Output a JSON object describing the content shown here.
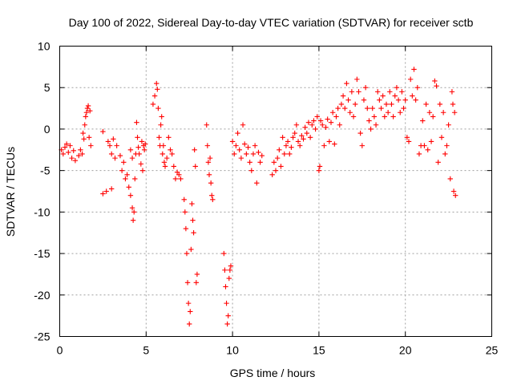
{
  "chart_data": {
    "type": "scatter",
    "title": "Day 100 of 2022, Sidereal Day-to-day VTEC variation (SDTVAR) for receiver sctb",
    "xlabel": "GPS time / hours",
    "ylabel": "SDTVAR / TECUs",
    "xlim": [
      0,
      25
    ],
    "ylim": [
      -25,
      10
    ],
    "xticks": [
      0,
      5,
      10,
      15,
      20,
      25
    ],
    "yticks": [
      -25,
      -20,
      -15,
      -10,
      -5,
      0,
      5,
      10
    ],
    "grid": true,
    "marker": "+",
    "color": "#ff0000",
    "series": [
      {
        "name": "sctb",
        "points": [
          [
            0.1,
            -2.5
          ],
          [
            0.2,
            -3.0
          ],
          [
            0.3,
            -2.2
          ],
          [
            0.4,
            -1.8
          ],
          [
            0.5,
            -2.8
          ],
          [
            0.6,
            -2.0
          ],
          [
            0.7,
            -3.5
          ],
          [
            0.8,
            -2.6
          ],
          [
            0.9,
            -3.8
          ],
          [
            1.1,
            -3.2
          ],
          [
            1.2,
            -2.5
          ],
          [
            1.3,
            -3.0
          ],
          [
            1.35,
            -0.5
          ],
          [
            1.4,
            -1.2
          ],
          [
            1.45,
            0.5
          ],
          [
            1.5,
            1.5
          ],
          [
            1.55,
            2.0
          ],
          [
            1.6,
            2.5
          ],
          [
            1.65,
            2.8
          ],
          [
            1.7,
            -1.0
          ],
          [
            1.75,
            2.2
          ],
          [
            1.8,
            -2.0
          ],
          [
            2.5,
            -0.3
          ],
          [
            2.5,
            -7.8
          ],
          [
            2.7,
            -7.5
          ],
          [
            2.8,
            -1.5
          ],
          [
            2.9,
            -2.0
          ],
          [
            3.0,
            -3.0
          ],
          [
            3.0,
            -7.2
          ],
          [
            3.1,
            -1.2
          ],
          [
            3.2,
            -3.5
          ],
          [
            3.3,
            -2.0
          ],
          [
            3.5,
            -3.2
          ],
          [
            3.6,
            -5.0
          ],
          [
            3.7,
            -4.0
          ],
          [
            3.8,
            -6.0
          ],
          [
            3.9,
            -5.5
          ],
          [
            4.0,
            -7.0
          ],
          [
            4.1,
            -8.0
          ],
          [
            4.1,
            -2.5
          ],
          [
            4.2,
            -9.5
          ],
          [
            4.2,
            -3.5
          ],
          [
            4.25,
            -11.0
          ],
          [
            4.3,
            -10.0
          ],
          [
            4.35,
            -6.0
          ],
          [
            4.4,
            -3.0
          ],
          [
            4.45,
            0.8
          ],
          [
            4.5,
            -1.0
          ],
          [
            4.55,
            -2.2
          ],
          [
            4.6,
            -3.0
          ],
          [
            4.7,
            -4.2
          ],
          [
            4.75,
            -1.5
          ],
          [
            4.8,
            -5.0
          ],
          [
            4.85,
            -2.0
          ],
          [
            4.9,
            -2.5
          ],
          [
            4.95,
            -1.8
          ],
          [
            5.4,
            3.0
          ],
          [
            5.5,
            4.0
          ],
          [
            5.6,
            5.5
          ],
          [
            5.65,
            4.8
          ],
          [
            5.7,
            2.5
          ],
          [
            5.75,
            -1.0
          ],
          [
            5.8,
            -2.0
          ],
          [
            5.85,
            0.5
          ],
          [
            5.9,
            1.5
          ],
          [
            5.95,
            -3.0
          ],
          [
            6.0,
            -2.0
          ],
          [
            6.05,
            -4.0
          ],
          [
            6.1,
            -4.5
          ],
          [
            6.2,
            -3.5
          ],
          [
            6.3,
            -1.0
          ],
          [
            6.4,
            -2.5
          ],
          [
            6.5,
            -3.0
          ],
          [
            6.6,
            -4.5
          ],
          [
            6.7,
            -6.0
          ],
          [
            6.8,
            -5.2
          ],
          [
            6.9,
            -5.5
          ],
          [
            7.0,
            -6.0
          ],
          [
            7.2,
            -8.5
          ],
          [
            7.25,
            -10.0
          ],
          [
            7.3,
            -12.0
          ],
          [
            7.35,
            -15.0
          ],
          [
            7.4,
            -18.5
          ],
          [
            7.45,
            -21.0
          ],
          [
            7.5,
            -23.5
          ],
          [
            7.55,
            -22.0
          ],
          [
            7.6,
            -14.5
          ],
          [
            7.65,
            -9.0
          ],
          [
            7.7,
            -11.0
          ],
          [
            7.75,
            -12.5
          ],
          [
            7.8,
            -2.5
          ],
          [
            7.85,
            -4.5
          ],
          [
            7.9,
            -18.5
          ],
          [
            7.95,
            -17.5
          ],
          [
            8.5,
            0.5
          ],
          [
            8.55,
            -2.0
          ],
          [
            8.6,
            -4.0
          ],
          [
            8.65,
            -5.5
          ],
          [
            8.7,
            -3.5
          ],
          [
            8.75,
            -6.5
          ],
          [
            8.8,
            -8.0
          ],
          [
            8.85,
            -8.5
          ],
          [
            9.5,
            -15.0
          ],
          [
            9.55,
            -17.0
          ],
          [
            9.6,
            -19.0
          ],
          [
            9.65,
            -21.0
          ],
          [
            9.7,
            -23.5
          ],
          [
            9.75,
            -22.5
          ],
          [
            9.8,
            -18.0
          ],
          [
            9.85,
            -17.0
          ],
          [
            9.9,
            -16.5
          ],
          [
            10.0,
            -1.5
          ],
          [
            10.1,
            -3.0
          ],
          [
            10.2,
            -2.0
          ],
          [
            10.3,
            -0.5
          ],
          [
            10.4,
            -2.5
          ],
          [
            10.5,
            -3.5
          ],
          [
            10.6,
            0.5
          ],
          [
            10.7,
            -1.8
          ],
          [
            10.8,
            -3.0
          ],
          [
            10.9,
            -2.2
          ],
          [
            11.0,
            -4.0
          ],
          [
            11.1,
            -5.0
          ],
          [
            11.2,
            -3.0
          ],
          [
            11.3,
            -2.0
          ],
          [
            11.4,
            -6.5
          ],
          [
            11.5,
            -2.8
          ],
          [
            11.6,
            -4.0
          ],
          [
            11.7,
            -3.2
          ],
          [
            12.3,
            -5.5
          ],
          [
            12.4,
            -4.0
          ],
          [
            12.5,
            -5.0
          ],
          [
            12.6,
            -3.5
          ],
          [
            12.7,
            -2.5
          ],
          [
            12.8,
            -4.5
          ],
          [
            12.9,
            -1.0
          ],
          [
            13.0,
            -3.0
          ],
          [
            13.1,
            -2.0
          ],
          [
            13.2,
            -1.5
          ],
          [
            13.3,
            -3.0
          ],
          [
            13.4,
            -2.2
          ],
          [
            13.5,
            -1.0
          ],
          [
            13.6,
            -0.5
          ],
          [
            13.7,
            0.5
          ],
          [
            13.8,
            -1.5
          ],
          [
            13.9,
            -2.0
          ],
          [
            14.0,
            -0.8
          ],
          [
            14.1,
            -1.2
          ],
          [
            14.2,
            0.2
          ],
          [
            14.3,
            -0.5
          ],
          [
            14.4,
            0.8
          ],
          [
            14.5,
            -1.0
          ],
          [
            14.6,
            0.5
          ],
          [
            14.7,
            1.0
          ],
          [
            14.8,
            0.0
          ],
          [
            14.9,
            1.5
          ],
          [
            15.0,
            -5.0
          ],
          [
            15.05,
            -4.5
          ],
          [
            15.1,
            1.0
          ],
          [
            15.2,
            0.5
          ],
          [
            15.3,
            -2.0
          ],
          [
            15.4,
            0.2
          ],
          [
            15.5,
            1.2
          ],
          [
            15.6,
            -1.5
          ],
          [
            15.7,
            0.8
          ],
          [
            15.8,
            2.0
          ],
          [
            15.9,
            -1.8
          ],
          [
            16.0,
            1.5
          ],
          [
            16.1,
            2.5
          ],
          [
            16.2,
            0.5
          ],
          [
            16.3,
            3.0
          ],
          [
            16.4,
            4.0
          ],
          [
            16.5,
            2.5
          ],
          [
            16.6,
            5.5
          ],
          [
            16.7,
            3.5
          ],
          [
            16.8,
            2.0
          ],
          [
            16.9,
            4.5
          ],
          [
            17.0,
            1.5
          ],
          [
            17.1,
            3.0
          ],
          [
            17.2,
            6.0
          ],
          [
            17.3,
            4.5
          ],
          [
            17.4,
            -0.5
          ],
          [
            17.5,
            -2.0
          ],
          [
            17.6,
            3.5
          ],
          [
            17.7,
            5.0
          ],
          [
            17.8,
            2.5
          ],
          [
            17.9,
            1.0
          ],
          [
            18.0,
            0.0
          ],
          [
            18.1,
            2.5
          ],
          [
            18.2,
            1.5
          ],
          [
            18.3,
            0.5
          ],
          [
            18.4,
            4.5
          ],
          [
            18.5,
            3.5
          ],
          [
            18.6,
            2.5
          ],
          [
            18.7,
            4.0
          ],
          [
            18.8,
            1.5
          ],
          [
            18.9,
            3.0
          ],
          [
            19.0,
            2.0
          ],
          [
            19.1,
            4.5
          ],
          [
            19.2,
            3.0
          ],
          [
            19.3,
            1.5
          ],
          [
            19.4,
            4.0
          ],
          [
            19.5,
            5.0
          ],
          [
            19.6,
            3.5
          ],
          [
            19.7,
            2.0
          ],
          [
            19.8,
            4.5
          ],
          [
            19.9,
            2.5
          ],
          [
            20.0,
            3.5
          ],
          [
            20.1,
            -1.0
          ],
          [
            20.2,
            -1.5
          ],
          [
            20.3,
            6.0
          ],
          [
            20.4,
            4.0
          ],
          [
            20.5,
            7.2
          ],
          [
            20.6,
            3.5
          ],
          [
            20.7,
            5.0
          ],
          [
            20.8,
            -3.0
          ],
          [
            20.9,
            -2.0
          ],
          [
            21.0,
            1.0
          ],
          [
            21.1,
            -2.0
          ],
          [
            21.2,
            3.0
          ],
          [
            21.3,
            -2.5
          ],
          [
            21.4,
            2.0
          ],
          [
            21.5,
            -1.5
          ],
          [
            21.6,
            1.5
          ],
          [
            21.7,
            5.8
          ],
          [
            21.8,
            5.2
          ],
          [
            21.9,
            -4.0
          ],
          [
            22.0,
            3.0
          ],
          [
            22.1,
            -1.0
          ],
          [
            22.2,
            2.0
          ],
          [
            22.3,
            -3.0
          ],
          [
            22.4,
            -2.0
          ],
          [
            22.5,
            0.5
          ],
          [
            22.6,
            -6.0
          ],
          [
            22.7,
            4.5
          ],
          [
            22.75,
            3.0
          ],
          [
            22.8,
            -7.5
          ],
          [
            22.85,
            2.0
          ],
          [
            22.9,
            -8.0
          ]
        ]
      }
    ]
  }
}
